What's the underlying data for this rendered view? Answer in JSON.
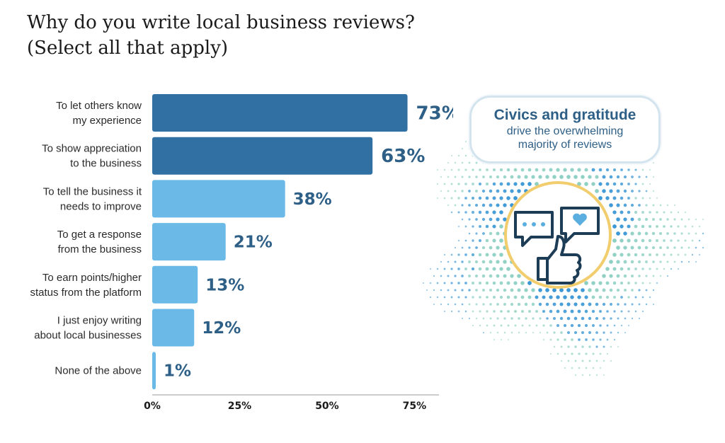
{
  "chart_data": {
    "type": "bar",
    "orientation": "horizontal",
    "title_lines": [
      "Why do you write local business reviews?",
      "(Select all that apply)"
    ],
    "categories": [
      [
        "To let others know",
        "my experience"
      ],
      [
        "To show appreciation",
        "to the business"
      ],
      [
        "To tell the business it",
        "needs to improve"
      ],
      [
        "To get a response",
        "from the business"
      ],
      [
        "To earn points/higher",
        "status from the platform"
      ],
      [
        "I just enjoy writing",
        "about local businesses"
      ],
      [
        "None of the above"
      ]
    ],
    "values": [
      73,
      63,
      38,
      21,
      13,
      12,
      1
    ],
    "value_labels": [
      "73%",
      "63%",
      "38%",
      "21%",
      "13%",
      "12%",
      "1%"
    ],
    "highlighted": [
      true,
      true,
      false,
      false,
      false,
      false,
      false
    ],
    "xlim": [
      0,
      82
    ],
    "xticks": [
      0,
      25,
      50,
      75
    ],
    "xtick_labels": [
      "0%",
      "25%",
      "50%",
      "75%"
    ],
    "grid": false,
    "colors": {
      "highlight": "#3070a2",
      "normal": "#6ab9e6",
      "value_text": "#2e5f86"
    }
  },
  "callout": {
    "title": "Civics and gratitude",
    "line1": "drive the overwhelming",
    "line2": "majority of reviews"
  },
  "illustration": {
    "icons": [
      "speech-bubble-dots-icon",
      "speech-bubble-heart-icon",
      "thumbs-up-icon"
    ],
    "colors": {
      "ring": "#f2cd6e",
      "outline": "#1d3d57",
      "heart": "#5aaee0",
      "dots_teal": "#8ccfc2",
      "dots_blue": "#3a97d4"
    }
  }
}
